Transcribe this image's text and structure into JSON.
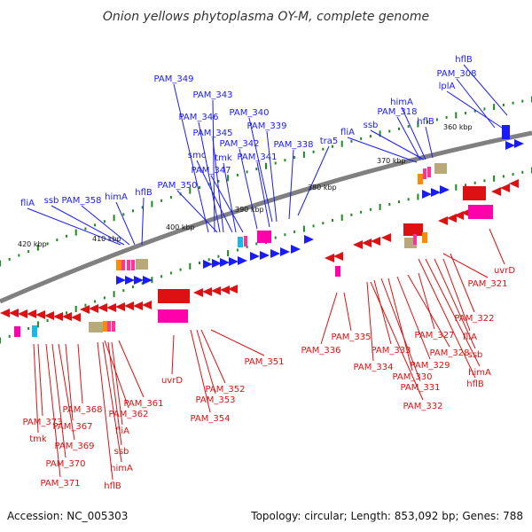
{
  "title": "Onion yellows phytoplasma OY-M, complete genome",
  "accession": "Accession: NC_005303",
  "summary": "Topology: circular; Length: 853,092 bp; Genes: 788",
  "colors": {
    "backbone": "#808080",
    "forward_gene": "#1a1aff",
    "reverse_gene": "#dd1111",
    "tick": "#1f8a1f",
    "rrna": "#b8aa78",
    "trna_pink": "#ff3399",
    "trna_magenta": "#ff00aa",
    "orange": "#ff8c00",
    "cyan": "#1fb6e6"
  },
  "scale_labels": [
    "360 kbp",
    "370 kbp",
    "380 kbp",
    "390 kbp",
    "400 kbp",
    "410 kbp",
    "420 kbp"
  ],
  "forward_genes": [
    "PAM_349",
    "PAM_343",
    "PAM_346",
    "PAM_345",
    "PAM_340",
    "PAM_339",
    "smc",
    "tmk",
    "PAM_342",
    "PAM_341",
    "PAM_338",
    "PAM_347",
    "PAM_350",
    "tra5",
    "fliA",
    "ssb",
    "PAM_358",
    "himA",
    "hflB",
    "fliA",
    "ssb",
    "himA",
    "PAM_318",
    "hflB",
    "PAM_308",
    "lplA",
    "hflB"
  ],
  "reverse_genes": [
    "PAM_373",
    "tmk",
    "PAM_368",
    "PAM_367",
    "PAM_369",
    "PAM_370",
    "PAM_371",
    "PAM_362",
    "PAM_361",
    "fliA",
    "ssb",
    "himA",
    "hflB",
    "uvrD",
    "PAM_352",
    "PAM_353",
    "PAM_354",
    "PAM_351",
    "PAM_336",
    "PAM_335",
    "PAM_334",
    "PAM_333",
    "PAM_330",
    "PAM_331",
    "PAM_332",
    "PAM_329",
    "PAM_328",
    "PAM_327",
    "fliA",
    "ssb",
    "himA",
    "hflB",
    "PAM_322",
    "PAM_321",
    "uvrD"
  ]
}
